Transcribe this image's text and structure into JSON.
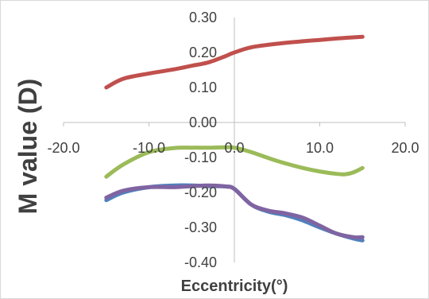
{
  "chart_data": {
    "type": "line",
    "title": "",
    "xlabel": "Eccentricity(°)",
    "ylabel": "M value (D)",
    "xlim": [
      -20,
      20
    ],
    "ylim": [
      -0.4,
      0.3
    ],
    "x_ticks": [
      "-20.0",
      "-10.0",
      "0.0",
      "10.0",
      "20.0"
    ],
    "y_ticks": [
      "0.30",
      "0.20",
      "0.10",
      "0.00",
      "-0.10",
      "-0.20",
      "-0.30",
      "-0.40"
    ],
    "grid": false,
    "legend": "none",
    "series": [
      {
        "color": "#C0504D",
        "x": [
          -15,
          -13,
          -10,
          -7,
          -5,
          -3,
          -1,
          0,
          2,
          5,
          8,
          10,
          12,
          15
        ],
        "y": [
          0.1,
          0.125,
          0.14,
          0.152,
          0.162,
          0.172,
          0.19,
          0.2,
          0.215,
          0.225,
          0.232,
          0.236,
          0.24,
          0.245
        ]
      },
      {
        "color": "#9BBB59",
        "x": [
          -15,
          -13,
          -10,
          -7,
          -5,
          -3,
          -1,
          0,
          2,
          5,
          8,
          10,
          12,
          13,
          14,
          15
        ],
        "y": [
          -0.155,
          -0.12,
          -0.085,
          -0.073,
          -0.072,
          -0.072,
          -0.071,
          -0.072,
          -0.085,
          -0.11,
          -0.13,
          -0.14,
          -0.147,
          -0.148,
          -0.142,
          -0.13
        ]
      },
      {
        "color": "#4F81BD",
        "x": [
          -15,
          -13,
          -10,
          -7,
          -5,
          -3,
          -1,
          0,
          2,
          4,
          6,
          8,
          10,
          12,
          14,
          15
        ],
        "y": [
          -0.222,
          -0.2,
          -0.185,
          -0.18,
          -0.18,
          -0.182,
          -0.183,
          -0.19,
          -0.235,
          -0.255,
          -0.265,
          -0.28,
          -0.3,
          -0.318,
          -0.332,
          -0.337
        ]
      },
      {
        "color": "#8064A2",
        "x": [
          -15,
          -13,
          -10,
          -7,
          -5,
          -3,
          -1,
          0,
          2,
          4,
          6,
          8,
          10,
          12,
          14,
          15
        ],
        "y": [
          -0.215,
          -0.195,
          -0.185,
          -0.185,
          -0.182,
          -0.18,
          -0.183,
          -0.19,
          -0.235,
          -0.252,
          -0.26,
          -0.272,
          -0.295,
          -0.318,
          -0.328,
          -0.328
        ]
      }
    ]
  }
}
